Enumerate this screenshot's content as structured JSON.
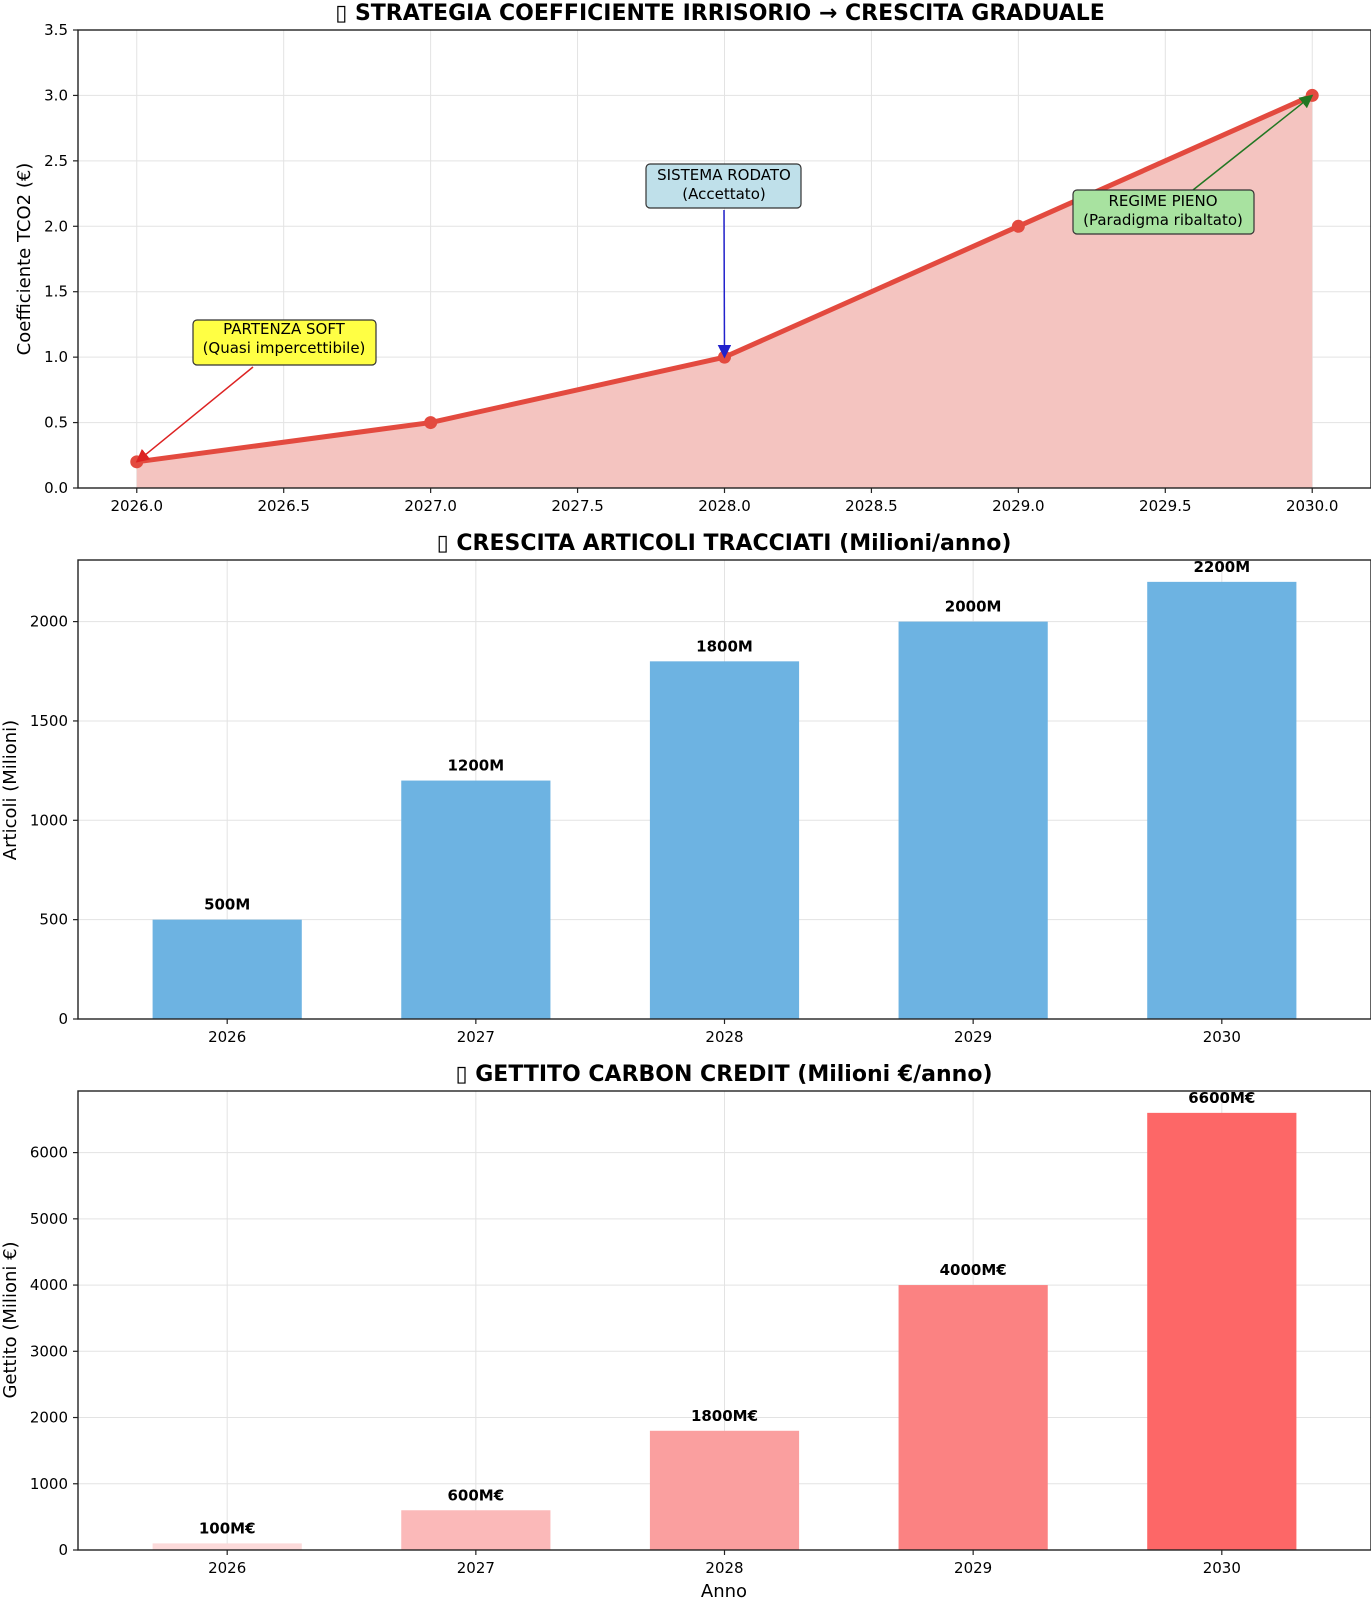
{
  "chart_data": [
    {
      "type": "area",
      "title": "▯ STRATEGIA COEFFICIENTE IRRISORIO → CRESCITA GRADUALE",
      "xlabel": "",
      "ylabel": "Coefficiente TCO2 (€)",
      "x": [
        2026.0,
        2027.0,
        2028.0,
        2029.0,
        2030.0
      ],
      "values": [
        0.2,
        0.5,
        1.0,
        2.0,
        3.0
      ],
      "xlim": [
        2025.8,
        2030.2
      ],
      "ylim": [
        0,
        3.5
      ],
      "xticks": [
        "2026.0",
        "2026.5",
        "2027.0",
        "2027.5",
        "2028.0",
        "2028.5",
        "2029.0",
        "2029.5",
        "2030.0"
      ],
      "yticks": [
        "0.0",
        "0.5",
        "1.0",
        "1.5",
        "2.0",
        "2.5",
        "3.0",
        "3.5"
      ],
      "grid": true,
      "colors": {
        "line": "#e34a3f",
        "fill": "#f4c4c0"
      },
      "annotations": [
        {
          "line1": "PARTENZA SOFT",
          "line2": "(Quasi impercettibile)",
          "target_x": 2026.0,
          "target_y": 0.2,
          "box_color": "#ffff44",
          "arrow_color": "#dd2222"
        },
        {
          "line1": "SISTEMA RODATO",
          "line2": "(Accettato)",
          "target_x": 2028.0,
          "target_y": 1.0,
          "box_color": "#bfe0ea",
          "arrow_color": "#2222cc"
        },
        {
          "line1": "REGIME PIENO",
          "line2": "(Paradigma ribaltato)",
          "target_x": 2030.0,
          "target_y": 3.0,
          "box_color": "#a8e2a0",
          "arrow_color": "#227722"
        }
      ]
    },
    {
      "type": "bar",
      "title": "▯ CRESCITA ARTICOLI TRACCIATI (Milioni/anno)",
      "xlabel": "",
      "ylabel": "Articoli (Milioni)",
      "categories": [
        "2026",
        "2027",
        "2028",
        "2029",
        "2030"
      ],
      "values": [
        500,
        1200,
        1800,
        2000,
        2200
      ],
      "data_labels": [
        "500M",
        "1200M",
        "1800M",
        "2000M",
        "2200M"
      ],
      "ylim": [
        0,
        2310
      ],
      "yticks": [
        "0",
        "500",
        "1000",
        "1500",
        "2000"
      ],
      "grid": true,
      "colors": {
        "bar": "#6db3e2"
      }
    },
    {
      "type": "bar",
      "title": "▯ GETTITO CARBON CREDIT (Milioni €/anno)",
      "xlabel": "Anno",
      "ylabel": "Gettito (Milioni €)",
      "categories": [
        "2026",
        "2027",
        "2028",
        "2029",
        "2030"
      ],
      "values": [
        100,
        600,
        1800,
        4000,
        6600
      ],
      "data_labels": [
        "100M€",
        "600M€",
        "1800M€",
        "4000M€",
        "6600M€"
      ],
      "ylim": [
        0,
        6930
      ],
      "yticks": [
        "0",
        "1000",
        "2000",
        "3000",
        "4000",
        "5000",
        "6000"
      ],
      "grid": true,
      "colors": {
        "bars": [
          "#fcdada",
          "#fbb9b9",
          "#fa9f9f",
          "#fb8282",
          "#fd6767"
        ]
      }
    }
  ]
}
